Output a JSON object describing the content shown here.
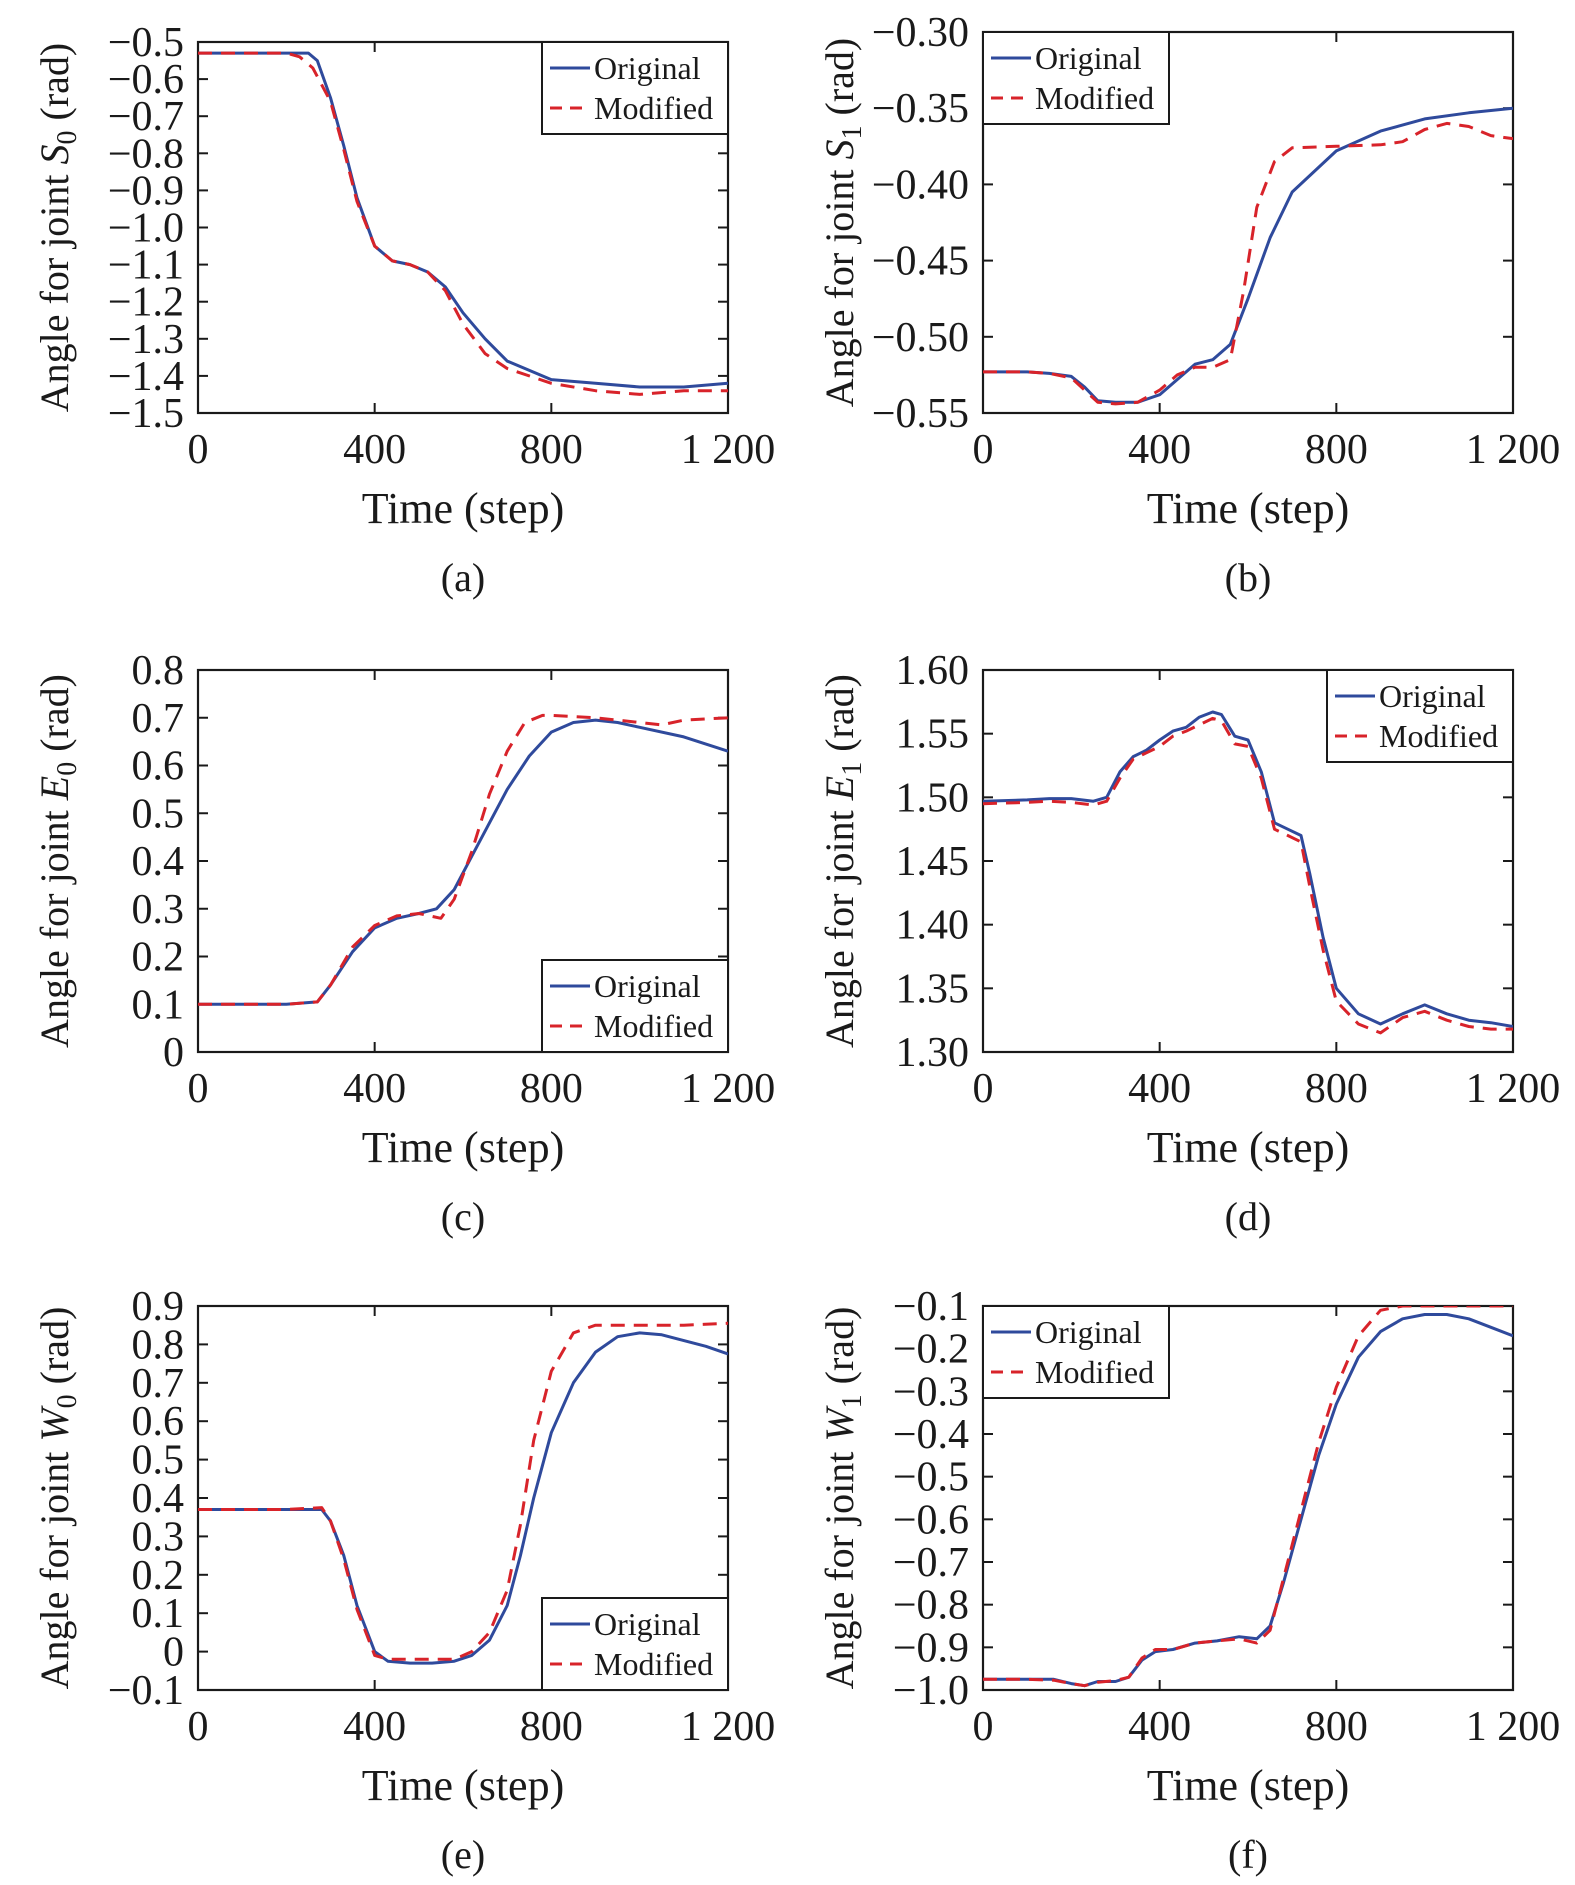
{
  "colors": {
    "original": "#2f4a9c",
    "modified": "#d8232a",
    "axis": "#1a1a1a"
  },
  "chart_data": [
    {
      "id": "a",
      "type": "line",
      "panel_label": "(a)",
      "xlabel": "Time (step)",
      "ylabel_prefix": "Angle for joint ",
      "ylabel_sym": "S",
      "ylabel_sub": "0",
      "ylabel_suffix": " (rad)",
      "xlim": [
        0,
        1200
      ],
      "ylim": [
        -1.5,
        -0.5
      ],
      "xticks": [
        0,
        400,
        800,
        1200
      ],
      "xtick_labels": [
        "0",
        "400",
        "800",
        "1 200"
      ],
      "yticks": [
        -0.5,
        -0.6,
        -0.7,
        -0.8,
        -0.9,
        -1.0,
        -1.1,
        -1.2,
        -1.3,
        -1.4,
        -1.5
      ],
      "ytick_labels": [
        "−0.5",
        "−0.6",
        "−0.7",
        "−0.8",
        "−0.9",
        "−1.0",
        "−1.1",
        "−1.2",
        "−1.3",
        "−1.4",
        "−1.5"
      ],
      "legend_position": "top-right",
      "series": [
        {
          "name": "Original",
          "style": "solid",
          "x": [
            0,
            100,
            200,
            250,
            270,
            300,
            330,
            360,
            400,
            440,
            480,
            520,
            560,
            600,
            650,
            700,
            800,
            900,
            1000,
            1100,
            1200
          ],
          "y": [
            -0.53,
            -0.53,
            -0.53,
            -0.53,
            -0.55,
            -0.65,
            -0.78,
            -0.92,
            -1.05,
            -1.09,
            -1.1,
            -1.12,
            -1.16,
            -1.23,
            -1.3,
            -1.36,
            -1.41,
            -1.42,
            -1.43,
            -1.43,
            -1.42
          ]
        },
        {
          "name": "Modified",
          "style": "dashed",
          "x": [
            0,
            100,
            200,
            230,
            260,
            300,
            330,
            360,
            400,
            440,
            480,
            520,
            560,
            600,
            650,
            700,
            800,
            900,
            1000,
            1100,
            1200
          ],
          "y": [
            -0.53,
            -0.53,
            -0.53,
            -0.54,
            -0.57,
            -0.66,
            -0.79,
            -0.93,
            -1.05,
            -1.09,
            -1.1,
            -1.12,
            -1.17,
            -1.26,
            -1.34,
            -1.38,
            -1.42,
            -1.44,
            -1.45,
            -1.44,
            -1.44
          ]
        }
      ]
    },
    {
      "id": "b",
      "type": "line",
      "panel_label": "(b)",
      "xlabel": "Time (step)",
      "ylabel_prefix": "Angle for joint ",
      "ylabel_sym": "S",
      "ylabel_sub": "1",
      "ylabel_suffix": " (rad)",
      "xlim": [
        0,
        1200
      ],
      "ylim": [
        -0.55,
        -0.3
      ],
      "xticks": [
        0,
        400,
        800,
        1200
      ],
      "xtick_labels": [
        "0",
        "400",
        "800",
        "1 200"
      ],
      "yticks": [
        -0.3,
        -0.35,
        -0.4,
        -0.45,
        -0.5,
        -0.55
      ],
      "ytick_labels": [
        "−0.30",
        "−0.35",
        "−0.40",
        "−0.45",
        "−0.50",
        "−0.55"
      ],
      "legend_position": "top-left",
      "series": [
        {
          "name": "Original",
          "style": "solid",
          "x": [
            0,
            100,
            150,
            200,
            230,
            260,
            300,
            350,
            400,
            440,
            480,
            520,
            560,
            600,
            650,
            700,
            800,
            900,
            1000,
            1100,
            1200
          ],
          "y": [
            -0.523,
            -0.523,
            -0.524,
            -0.526,
            -0.533,
            -0.542,
            -0.543,
            -0.543,
            -0.538,
            -0.528,
            -0.518,
            -0.515,
            -0.505,
            -0.475,
            -0.435,
            -0.405,
            -0.378,
            -0.365,
            -0.357,
            -0.353,
            -0.35
          ]
        },
        {
          "name": "Modified",
          "style": "dashed",
          "x": [
            0,
            100,
            150,
            200,
            230,
            260,
            300,
            350,
            400,
            440,
            480,
            520,
            560,
            590,
            620,
            660,
            700,
            800,
            900,
            950,
            1000,
            1050,
            1100,
            1150,
            1200
          ],
          "y": [
            -0.523,
            -0.523,
            -0.524,
            -0.527,
            -0.535,
            -0.543,
            -0.544,
            -0.543,
            -0.535,
            -0.525,
            -0.52,
            -0.52,
            -0.515,
            -0.47,
            -0.415,
            -0.385,
            -0.376,
            -0.375,
            -0.374,
            -0.372,
            -0.364,
            -0.36,
            -0.362,
            -0.368,
            -0.37
          ]
        }
      ]
    },
    {
      "id": "c",
      "type": "line",
      "panel_label": "(c)",
      "xlabel": "Time (step)",
      "ylabel_prefix": "Angle for joint ",
      "ylabel_sym": "E",
      "ylabel_sub": "0",
      "ylabel_suffix": " (rad)",
      "xlim": [
        0,
        1200
      ],
      "ylim": [
        0,
        0.8
      ],
      "xticks": [
        0,
        400,
        800,
        1200
      ],
      "xtick_labels": [
        "0",
        "400",
        "800",
        "1 200"
      ],
      "yticks": [
        0.8,
        0.7,
        0.6,
        0.5,
        0.4,
        0.3,
        0.2,
        0.1,
        0
      ],
      "ytick_labels": [
        "0.8",
        "0.7",
        "0.6",
        "0.5",
        "0.4",
        "0.3",
        "0.2",
        "0.1",
        "0"
      ],
      "legend_position": "bottom-right",
      "series": [
        {
          "name": "Original",
          "style": "solid",
          "x": [
            0,
            100,
            200,
            270,
            300,
            350,
            400,
            450,
            500,
            540,
            580,
            620,
            660,
            700,
            750,
            800,
            850,
            900,
            950,
            1000,
            1100,
            1200
          ],
          "y": [
            0.1,
            0.1,
            0.1,
            0.105,
            0.14,
            0.21,
            0.26,
            0.28,
            0.29,
            0.3,
            0.34,
            0.41,
            0.48,
            0.55,
            0.62,
            0.67,
            0.69,
            0.695,
            0.69,
            0.68,
            0.66,
            0.63
          ]
        },
        {
          "name": "Modified",
          "style": "dashed",
          "x": [
            0,
            100,
            200,
            270,
            300,
            350,
            400,
            450,
            500,
            550,
            580,
            620,
            660,
            700,
            740,
            780,
            800,
            900,
            1000,
            1050,
            1100,
            1200
          ],
          "y": [
            0.1,
            0.1,
            0.1,
            0.105,
            0.14,
            0.22,
            0.265,
            0.285,
            0.29,
            0.28,
            0.32,
            0.42,
            0.54,
            0.63,
            0.69,
            0.705,
            0.705,
            0.7,
            0.69,
            0.685,
            0.695,
            0.7
          ]
        }
      ]
    },
    {
      "id": "d",
      "type": "line",
      "panel_label": "(d)",
      "xlabel": "Time (step)",
      "ylabel_prefix": "Angle for joint ",
      "ylabel_sym": "E",
      "ylabel_sub": "1",
      "ylabel_suffix": " (rad)",
      "xlim": [
        0,
        1200
      ],
      "ylim": [
        1.3,
        1.6
      ],
      "xticks": [
        0,
        400,
        800,
        1200
      ],
      "xtick_labels": [
        "0",
        "400",
        "800",
        "1 200"
      ],
      "yticks": [
        1.6,
        1.55,
        1.5,
        1.45,
        1.4,
        1.35,
        1.3
      ],
      "ytick_labels": [
        "1.60",
        "1.55",
        "1.50",
        "1.45",
        "1.40",
        "1.35",
        "1.30"
      ],
      "legend_position": "top-right",
      "series": [
        {
          "name": "Original",
          "style": "solid",
          "x": [
            0,
            100,
            150,
            200,
            250,
            280,
            310,
            340,
            370,
            400,
            430,
            460,
            490,
            520,
            540,
            570,
            600,
            630,
            660,
            690,
            720,
            740,
            770,
            800,
            850,
            900,
            950,
            1000,
            1050,
            1100,
            1150,
            1200
          ],
          "y": [
            1.497,
            1.498,
            1.499,
            1.499,
            1.497,
            1.5,
            1.52,
            1.532,
            1.537,
            1.545,
            1.552,
            1.555,
            1.563,
            1.567,
            1.565,
            1.548,
            1.545,
            1.52,
            1.48,
            1.475,
            1.47,
            1.44,
            1.39,
            1.35,
            1.33,
            1.322,
            1.33,
            1.337,
            1.33,
            1.325,
            1.323,
            1.32
          ]
        },
        {
          "name": "Modified",
          "style": "dashed",
          "x": [
            0,
            100,
            150,
            200,
            250,
            280,
            310,
            340,
            370,
            400,
            430,
            460,
            490,
            520,
            540,
            570,
            600,
            630,
            660,
            690,
            720,
            740,
            770,
            800,
            850,
            900,
            950,
            1000,
            1050,
            1100,
            1150,
            1200
          ],
          "y": [
            1.495,
            1.496,
            1.497,
            1.496,
            1.494,
            1.497,
            1.515,
            1.53,
            1.535,
            1.54,
            1.548,
            1.552,
            1.557,
            1.562,
            1.56,
            1.542,
            1.54,
            1.515,
            1.475,
            1.47,
            1.465,
            1.43,
            1.38,
            1.34,
            1.322,
            1.315,
            1.327,
            1.332,
            1.325,
            1.32,
            1.318,
            1.318
          ]
        }
      ]
    },
    {
      "id": "e",
      "type": "line",
      "panel_label": "(e)",
      "xlabel": "Time (step)",
      "ylabel_prefix": "Angle for joint ",
      "ylabel_sym": "W",
      "ylabel_sub": "0",
      "ylabel_suffix": " (rad)",
      "xlim": [
        0,
        1200
      ],
      "ylim": [
        -0.1,
        0.9
      ],
      "xticks": [
        0,
        400,
        800,
        1200
      ],
      "xtick_labels": [
        "0",
        "400",
        "800",
        "1 200"
      ],
      "yticks": [
        0.9,
        0.8,
        0.7,
        0.6,
        0.5,
        0.4,
        0.3,
        0.2,
        0.1,
        0,
        -0.1
      ],
      "ytick_labels": [
        "0.9",
        "0.8",
        "0.7",
        "0.6",
        "0.5",
        "0.4",
        "0.3",
        "0.2",
        "0.1",
        "0",
        "−0.1"
      ],
      "legend_position": "bottom-right",
      "series": [
        {
          "name": "Original",
          "style": "solid",
          "x": [
            0,
            100,
            200,
            280,
            300,
            330,
            360,
            400,
            430,
            480,
            530,
            580,
            620,
            660,
            700,
            730,
            760,
            800,
            850,
            900,
            950,
            1000,
            1050,
            1100,
            1150,
            1200
          ],
          "y": [
            0.37,
            0.37,
            0.37,
            0.37,
            0.34,
            0.25,
            0.12,
            0.0,
            -0.025,
            -0.03,
            -0.03,
            -0.025,
            -0.01,
            0.03,
            0.12,
            0.25,
            0.4,
            0.57,
            0.7,
            0.78,
            0.82,
            0.83,
            0.825,
            0.81,
            0.795,
            0.775
          ]
        },
        {
          "name": "Modified",
          "style": "dashed",
          "x": [
            0,
            100,
            200,
            280,
            300,
            330,
            360,
            400,
            430,
            480,
            530,
            580,
            620,
            660,
            700,
            730,
            760,
            800,
            850,
            900,
            1000,
            1100,
            1200
          ],
          "y": [
            0.37,
            0.37,
            0.37,
            0.375,
            0.34,
            0.24,
            0.11,
            -0.01,
            -0.02,
            -0.02,
            -0.02,
            -0.02,
            0.0,
            0.05,
            0.16,
            0.33,
            0.55,
            0.73,
            0.83,
            0.85,
            0.85,
            0.85,
            0.855
          ]
        }
      ]
    },
    {
      "id": "f",
      "type": "line",
      "panel_label": "(f)",
      "xlabel": "Time (step)",
      "ylabel_prefix": "Angle for joint ",
      "ylabel_sym": "W",
      "ylabel_sub": "1",
      "ylabel_suffix": " (rad)",
      "xlim": [
        0,
        1200
      ],
      "ylim": [
        -1.0,
        -0.1
      ],
      "xticks": [
        0,
        400,
        800,
        1200
      ],
      "xtick_labels": [
        "0",
        "400",
        "800",
        "1 200"
      ],
      "yticks": [
        -0.1,
        -0.2,
        -0.3,
        -0.4,
        -0.5,
        -0.6,
        -0.7,
        -0.8,
        -0.9,
        -1.0
      ],
      "ytick_labels": [
        "−0.1",
        "−0.2",
        "−0.3",
        "−0.4",
        "−0.5",
        "−0.6",
        "−0.7",
        "−0.8",
        "−0.9",
        "−1.0"
      ],
      "legend_position": "top-left",
      "series": [
        {
          "name": "Original",
          "style": "solid",
          "x": [
            0,
            100,
            160,
            200,
            230,
            260,
            300,
            330,
            360,
            390,
            430,
            480,
            530,
            580,
            620,
            650,
            680,
            720,
            760,
            800,
            850,
            900,
            950,
            1000,
            1050,
            1100,
            1150,
            1200
          ],
          "y": [
            -0.975,
            -0.975,
            -0.975,
            -0.985,
            -0.99,
            -0.98,
            -0.98,
            -0.97,
            -0.93,
            -0.91,
            -0.905,
            -0.89,
            -0.885,
            -0.875,
            -0.88,
            -0.85,
            -0.75,
            -0.6,
            -0.45,
            -0.33,
            -0.22,
            -0.16,
            -0.13,
            -0.12,
            -0.12,
            -0.13,
            -0.15,
            -0.17
          ]
        },
        {
          "name": "Modified",
          "style": "dashed",
          "x": [
            0,
            100,
            160,
            200,
            230,
            260,
            300,
            330,
            360,
            390,
            430,
            480,
            530,
            580,
            620,
            650,
            680,
            720,
            760,
            800,
            850,
            900,
            950,
            1000,
            1100,
            1200
          ],
          "y": [
            -0.975,
            -0.975,
            -0.977,
            -0.985,
            -0.99,
            -0.982,
            -0.978,
            -0.97,
            -0.925,
            -0.905,
            -0.905,
            -0.89,
            -0.885,
            -0.88,
            -0.89,
            -0.86,
            -0.74,
            -0.58,
            -0.42,
            -0.29,
            -0.17,
            -0.11,
            -0.1,
            -0.1,
            -0.1,
            -0.1
          ]
        }
      ]
    }
  ]
}
